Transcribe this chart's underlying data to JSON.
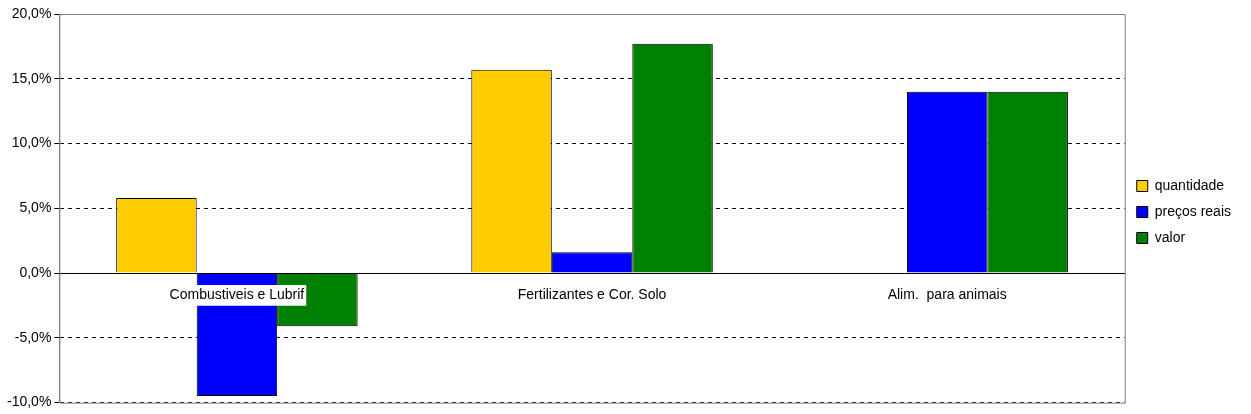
{
  "chart_data": {
    "type": "bar",
    "categories": [
      "Combustiveis e Lubrif",
      "Fertilizantes e Cor. Solo",
      "Alim.  para animais"
    ],
    "series": [
      {
        "name": "quantidade",
        "color": "#ffcc00",
        "values": [
          5.8,
          15.7,
          0
        ]
      },
      {
        "name": "preços reais",
        "color": "#0000ff",
        "values": [
          -9.5,
          1.6,
          14.0
        ]
      },
      {
        "name": "valor",
        "color": "#008000",
        "values": [
          -4.1,
          17.7,
          14.0
        ]
      }
    ],
    "ylim": [
      -10,
      20
    ],
    "yticks": [
      {
        "value": -10,
        "label": "-10,0%"
      },
      {
        "value": -5,
        "label": "-5,0%"
      },
      {
        "value": 0,
        "label": "0,0%"
      },
      {
        "value": 5,
        "label": "5,0%"
      },
      {
        "value": 10,
        "label": "10,0%"
      },
      {
        "value": 15,
        "label": "15,0%"
      },
      {
        "value": 20,
        "label": "20,0%"
      }
    ],
    "grid": "y",
    "legend": "right"
  }
}
